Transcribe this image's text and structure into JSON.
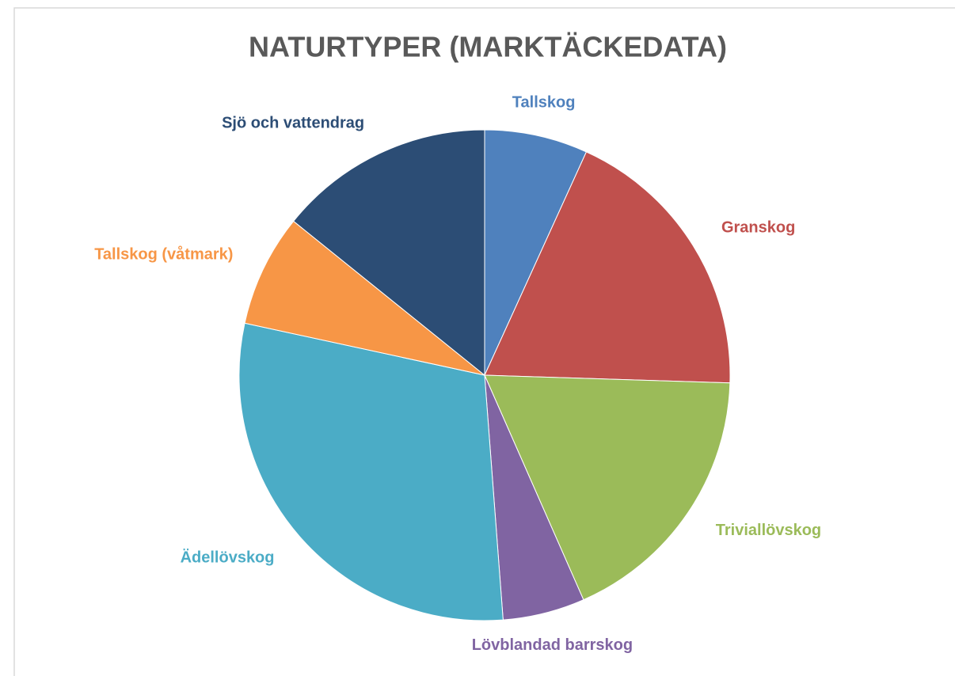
{
  "chart_data": {
    "type": "pie",
    "title": "NATURTYPER (MARKTÄCKEDATA)",
    "categories": [
      "Tallskog",
      "Granskog",
      "Triviallövskog",
      "Lövblandad barrskog",
      "Ädellövskog",
      "Tallskog (våtmark)",
      "Sjö och vattendrag"
    ],
    "values": [
      6.8,
      18.7,
      17.9,
      5.4,
      29.6,
      7.4,
      14.2
    ],
    "colors": [
      "#4f81bd",
      "#c0504d",
      "#9bbb59",
      "#8064a2",
      "#4bacc6",
      "#f79646",
      "#2c4d75"
    ]
  }
}
